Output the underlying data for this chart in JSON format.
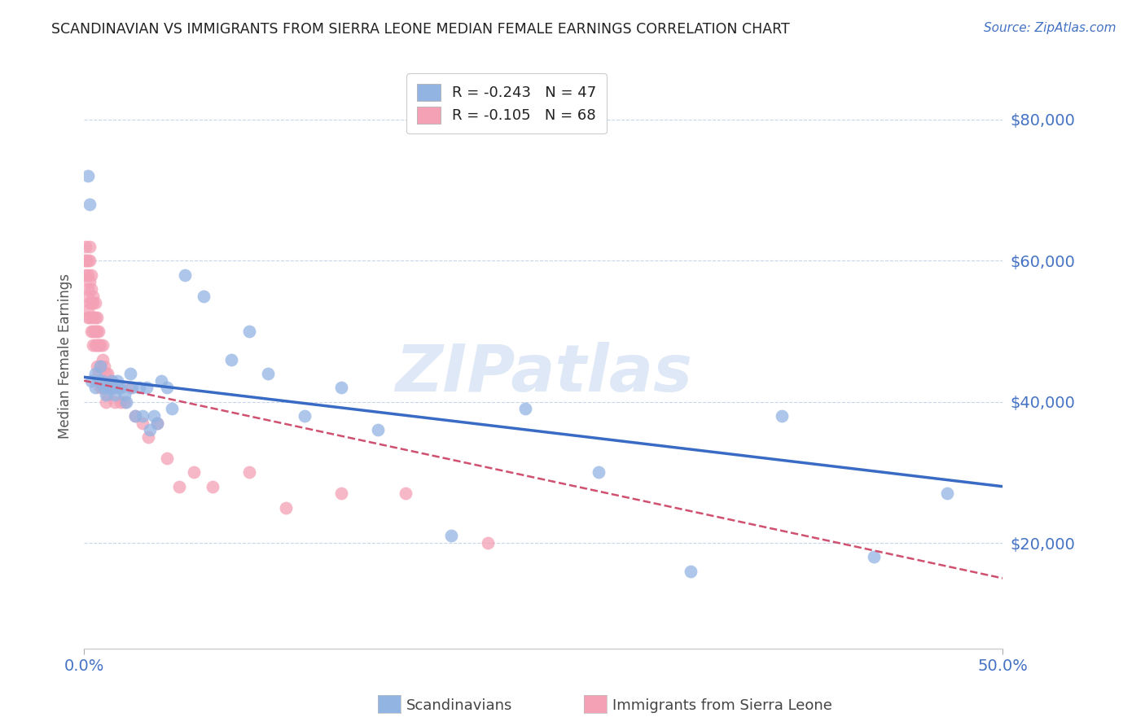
{
  "title": "SCANDINAVIAN VS IMMIGRANTS FROM SIERRA LEONE MEDIAN FEMALE EARNINGS CORRELATION CHART",
  "source": "Source: ZipAtlas.com",
  "ylabel": "Median Female Earnings",
  "ytick_labels": [
    "$20,000",
    "$40,000",
    "$60,000",
    "$80,000"
  ],
  "ytick_values": [
    20000,
    40000,
    60000,
    80000
  ],
  "xlim": [
    0.0,
    0.5
  ],
  "ylim": [
    5000,
    88000
  ],
  "legend_r1": "R = -0.243",
  "legend_n1": "N = 47",
  "legend_r2": "R = -0.105",
  "legend_n2": "N = 68",
  "watermark": "ZIPatlas",
  "blue_color": "#92b4e3",
  "pink_color": "#f4a0b5",
  "blue_line_color": "#3a6bc4",
  "pink_line_color": "#d05070",
  "title_color": "#222222",
  "axis_label_color": "#555555",
  "tick_color": "#4472c4",
  "source_color": "#4472c4",
  "scandinavians_x": [
    0.002,
    0.003,
    0.004,
    0.006,
    0.006,
    0.008,
    0.009,
    0.01,
    0.011,
    0.012,
    0.013,
    0.014,
    0.015,
    0.016,
    0.017,
    0.018,
    0.019,
    0.02,
    0.022,
    0.023,
    0.025,
    0.026,
    0.028,
    0.03,
    0.032,
    0.034,
    0.036,
    0.038,
    0.04,
    0.042,
    0.045,
    0.048,
    0.055,
    0.065,
    0.08,
    0.09,
    0.1,
    0.12,
    0.14,
    0.16,
    0.2,
    0.24,
    0.28,
    0.33,
    0.38,
    0.43,
    0.47
  ],
  "scandinavians_y": [
    72000,
    68000,
    43000,
    42000,
    44000,
    43000,
    45000,
    43000,
    42000,
    41000,
    42000,
    42000,
    43000,
    42000,
    41000,
    43000,
    42000,
    42000,
    41000,
    40000,
    44000,
    42000,
    38000,
    42000,
    38000,
    42000,
    36000,
    38000,
    37000,
    43000,
    42000,
    39000,
    58000,
    55000,
    46000,
    50000,
    44000,
    38000,
    42000,
    36000,
    21000,
    39000,
    30000,
    16000,
    38000,
    18000,
    27000
  ],
  "sierraleone_x": [
    0.001,
    0.001,
    0.001,
    0.001,
    0.002,
    0.002,
    0.002,
    0.002,
    0.002,
    0.002,
    0.003,
    0.003,
    0.003,
    0.003,
    0.003,
    0.004,
    0.004,
    0.004,
    0.004,
    0.005,
    0.005,
    0.005,
    0.005,
    0.005,
    0.006,
    0.006,
    0.006,
    0.006,
    0.007,
    0.007,
    0.007,
    0.007,
    0.008,
    0.008,
    0.008,
    0.009,
    0.009,
    0.009,
    0.01,
    0.01,
    0.01,
    0.011,
    0.011,
    0.012,
    0.012,
    0.013,
    0.013,
    0.014,
    0.015,
    0.016,
    0.017,
    0.018,
    0.02,
    0.022,
    0.025,
    0.028,
    0.032,
    0.035,
    0.04,
    0.045,
    0.052,
    0.06,
    0.07,
    0.09,
    0.11,
    0.14,
    0.175,
    0.22
  ],
  "sierraleone_y": [
    62000,
    60000,
    60000,
    58000,
    60000,
    58000,
    56000,
    55000,
    53000,
    52000,
    62000,
    60000,
    57000,
    54000,
    52000,
    58000,
    56000,
    54000,
    50000,
    55000,
    54000,
    52000,
    50000,
    48000,
    54000,
    52000,
    50000,
    48000,
    52000,
    50000,
    48000,
    45000,
    50000,
    48000,
    44000,
    48000,
    45000,
    42000,
    48000,
    46000,
    42000,
    45000,
    42000,
    44000,
    40000,
    44000,
    41000,
    43000,
    43000,
    42000,
    40000,
    42000,
    40000,
    40000,
    42000,
    38000,
    37000,
    35000,
    37000,
    32000,
    28000,
    30000,
    28000,
    30000,
    25000,
    27000,
    27000,
    20000
  ],
  "blue_line_x0": 0.0,
  "blue_line_x1": 0.5,
  "blue_line_y0": 43500,
  "blue_line_y1": 28000,
  "pink_line_x0": 0.0,
  "pink_line_x1": 0.5,
  "pink_line_y0": 43000,
  "pink_line_y1": 15000
}
